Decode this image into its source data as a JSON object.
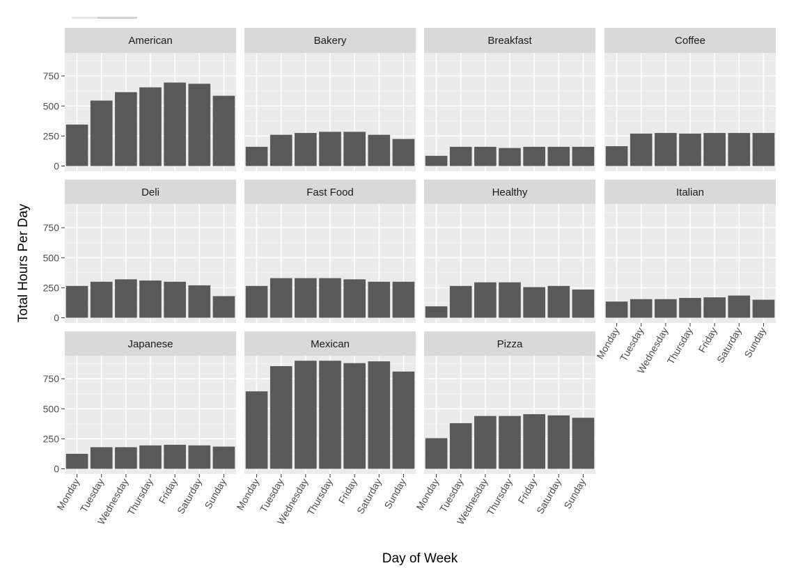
{
  "chart_data": {
    "type": "bar",
    "facet_layout": "wrap",
    "xlabel": "Day of Week",
    "ylabel": "Total Hours Per Day",
    "categories": [
      "Monday",
      "Tuesday",
      "Wednesday",
      "Thursday",
      "Friday",
      "Saturday",
      "Sunday"
    ],
    "ylim": [
      0,
      1000
    ],
    "yticks": [
      0,
      250,
      500,
      750
    ],
    "grid": true,
    "legend": "none",
    "colors": {
      "bar": "#595959",
      "panel_background": "#ebebeb",
      "strip_background": "#d9d9d9",
      "grid_major": "#ffffff",
      "grid_minor": "#f4f4f4"
    },
    "panels": [
      {
        "name": "American",
        "values": [
          345,
          545,
          615,
          655,
          695,
          685,
          585
        ]
      },
      {
        "name": "Bakery",
        "values": [
          160,
          260,
          275,
          285,
          285,
          260,
          225
        ]
      },
      {
        "name": "Breakfast",
        "values": [
          85,
          160,
          160,
          150,
          160,
          160,
          160
        ]
      },
      {
        "name": "Coffee",
        "values": [
          165,
          270,
          275,
          270,
          275,
          275,
          275
        ]
      },
      {
        "name": "Deli",
        "values": [
          265,
          300,
          320,
          310,
          300,
          270,
          180
        ]
      },
      {
        "name": "Fast Food",
        "values": [
          265,
          330,
          330,
          330,
          320,
          300,
          300
        ]
      },
      {
        "name": "Healthy",
        "values": [
          95,
          265,
          295,
          295,
          255,
          265,
          235
        ]
      },
      {
        "name": "Italian",
        "values": [
          135,
          155,
          155,
          165,
          170,
          185,
          150
        ]
      },
      {
        "name": "Japanese",
        "values": [
          125,
          180,
          180,
          195,
          200,
          195,
          185
        ]
      },
      {
        "name": "Mexican",
        "values": [
          645,
          855,
          900,
          900,
          880,
          895,
          810
        ]
      },
      {
        "name": "Pizza",
        "values": [
          255,
          380,
          440,
          440,
          455,
          445,
          425
        ]
      }
    ]
  }
}
